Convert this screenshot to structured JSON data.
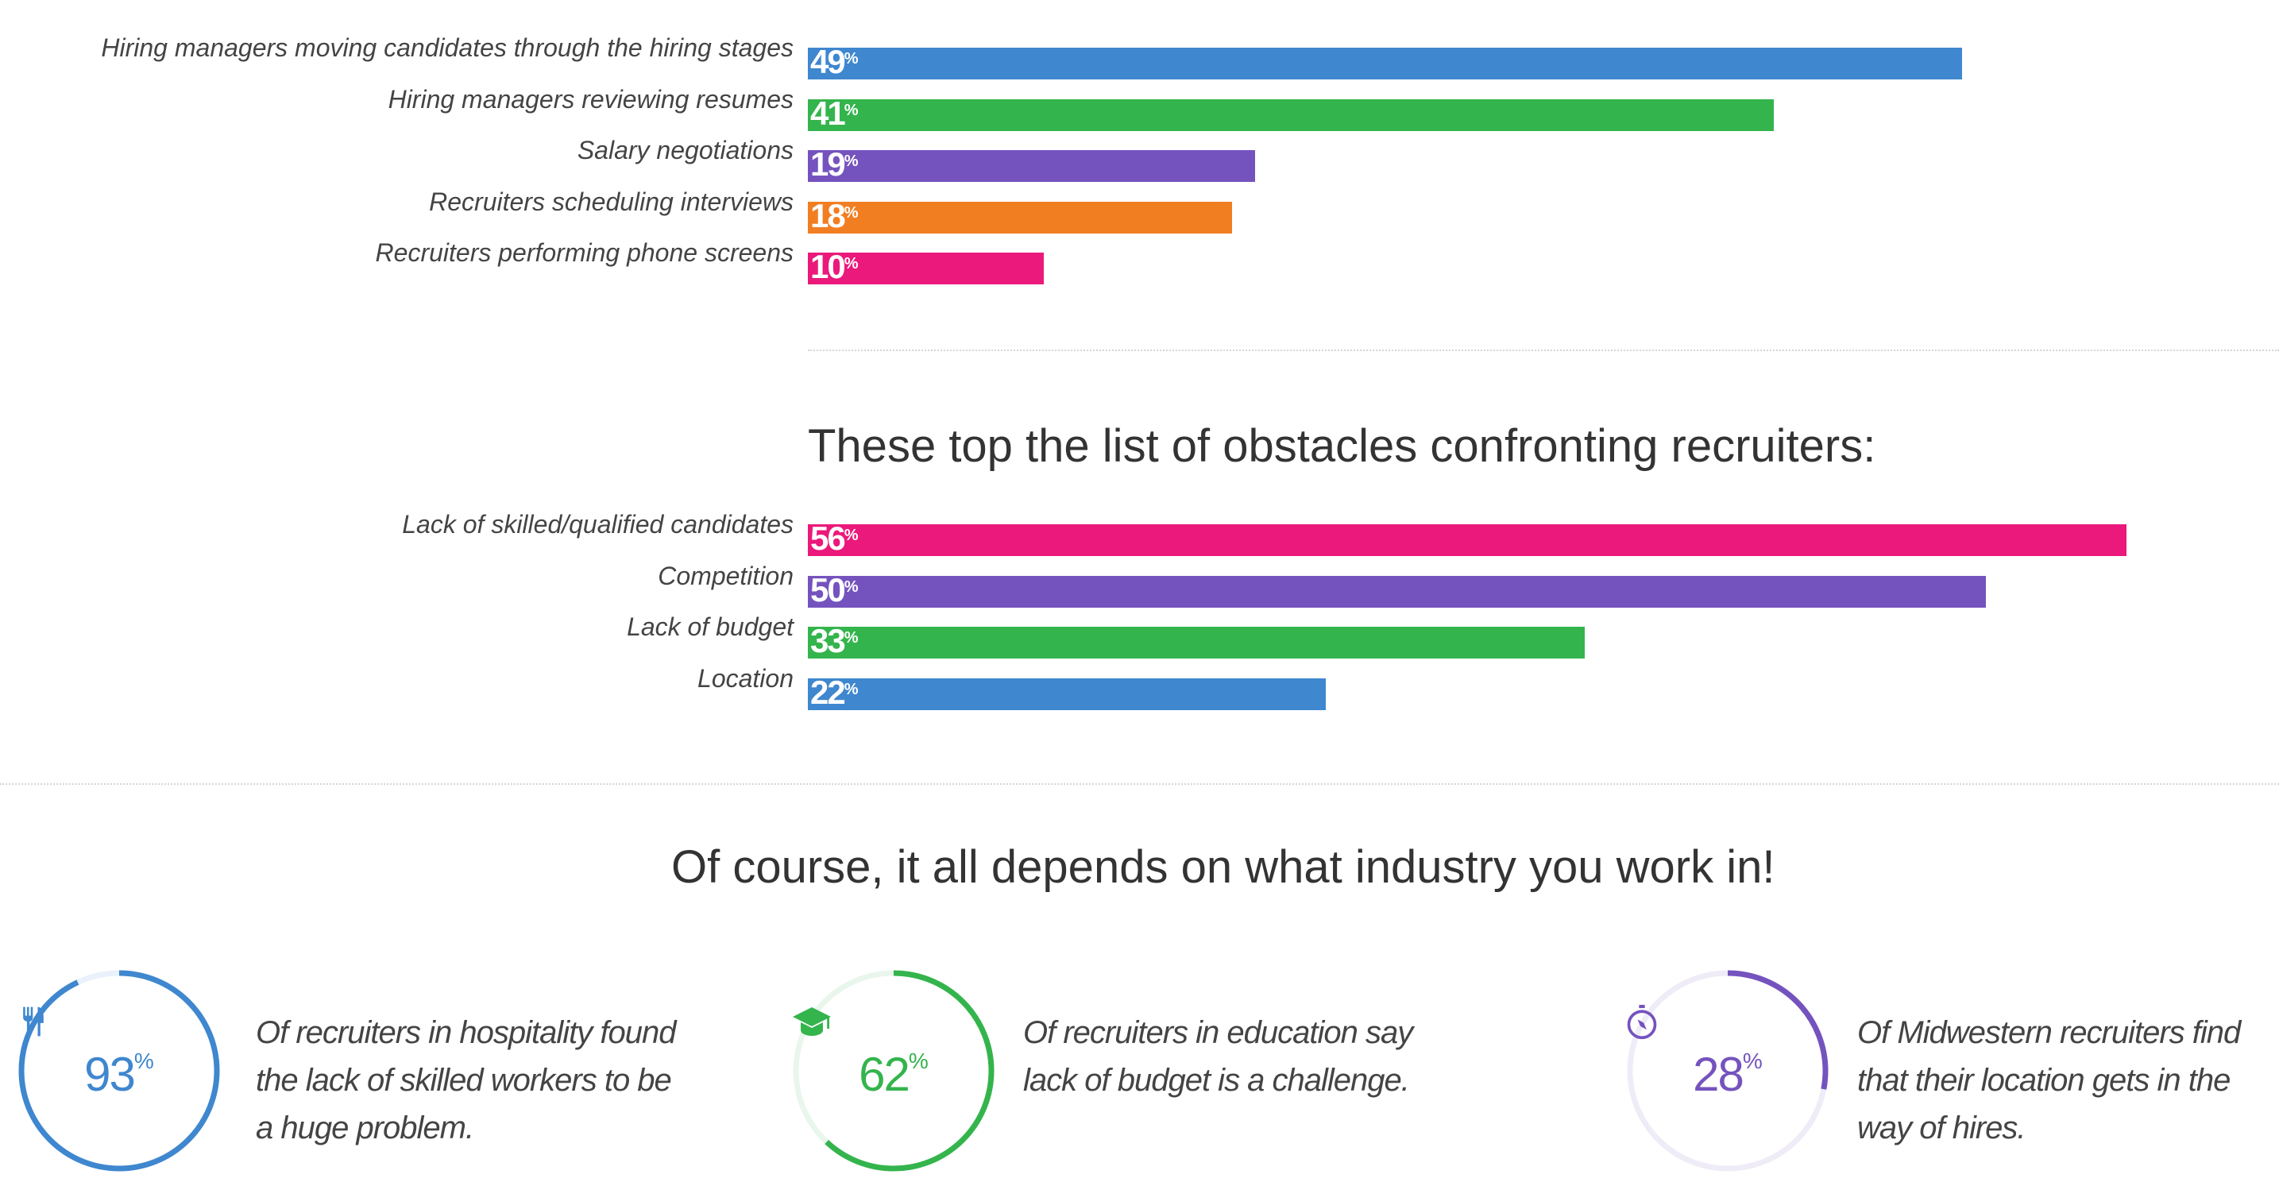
{
  "chart_data": [
    {
      "type": "bar",
      "orientation": "horizontal",
      "categories": [
        "Hiring managers moving candidates through the hiring stages",
        "Hiring managers reviewing resumes",
        "Salary negotiations",
        "Recruiters scheduling interviews",
        "Recruiters performing phone screens"
      ],
      "values": [
        49,
        41,
        19,
        18,
        10
      ],
      "colors": [
        "#3f87cf",
        "#34b44c",
        "#7553be",
        "#f27e22",
        "#ea197b"
      ],
      "unit": "%",
      "xlim": [
        0,
        60
      ]
    },
    {
      "type": "bar",
      "orientation": "horizontal",
      "title": "These top the list of obstacles confronting recruiters:",
      "categories": [
        "Lack of skilled/qualified candidates",
        "Competition",
        "Lack of budget",
        "Location"
      ],
      "values": [
        56,
        50,
        33,
        22
      ],
      "colors": [
        "#ea197b",
        "#7553be",
        "#34b44c",
        "#3f87cf"
      ],
      "unit": "%",
      "xlim": [
        0,
        60
      ]
    }
  ],
  "industry": {
    "heading": "Of course, it all depends on what industry you work in!",
    "stats": [
      {
        "value": "93",
        "unit": "%",
        "fraction": 0.93,
        "icon": "fork-knife-icon",
        "color": "#3f87cf",
        "track": "#eaf1fa",
        "text": [
          "Of recruiters in hospitality found",
          "the lack of skilled workers to be",
          "a huge problem."
        ]
      },
      {
        "value": "62",
        "unit": "%",
        "fraction": 0.62,
        "icon": "graduation-cap-icon",
        "color": "#34b44c",
        "track": "#e9f6ec",
        "text": [
          "Of recruiters in education say",
          "lack of budget is a challenge."
        ]
      },
      {
        "value": "28",
        "unit": "%",
        "fraction": 0.28,
        "icon": "compass-icon",
        "color": "#7553be",
        "track": "#efecf8",
        "text": [
          "Of Midwestern recruiters find",
          "that their location gets in the",
          "way of hires."
        ]
      }
    ]
  }
}
